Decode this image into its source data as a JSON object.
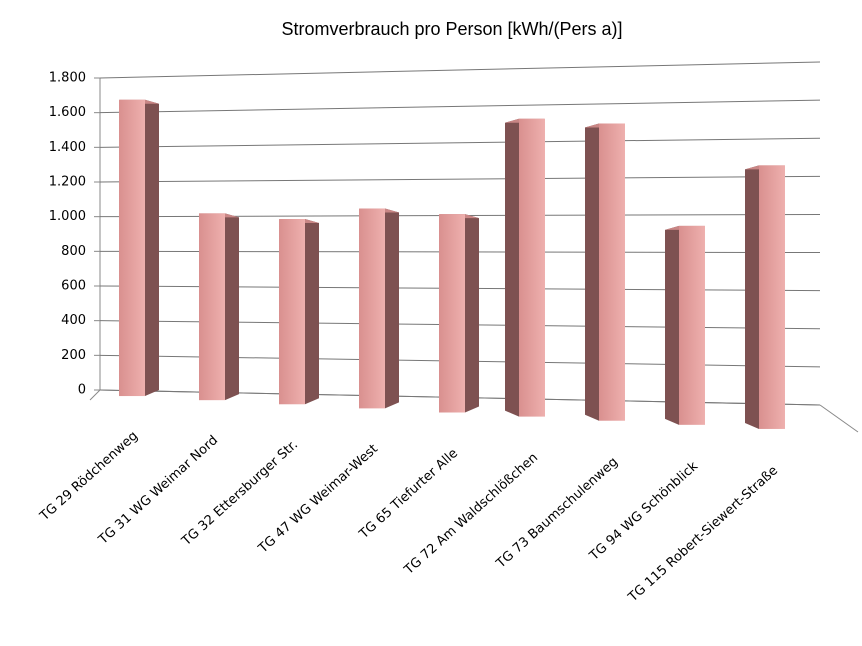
{
  "chart_data": {
    "type": "bar3d",
    "title": "Stromverbrauch pro Person [kWh/(Pers a)]",
    "categories": [
      "TG 29 Rödchenweg",
      "TG 31 WG Weimar Nord",
      "TG 32 Ettersburger Str.",
      "TG 47 WG Weimar-West",
      "TG 65 Tiefurter Alle",
      "TG 72 Am Waldschlößchen",
      "TG 73 Baumschulenweg",
      "TG 94 WG Schönblick",
      "TG 115 Robert-Siewert-Straße"
    ],
    "values": [
      1700,
      1060,
      1040,
      1110,
      1090,
      1620,
      1600,
      1060,
      1390
    ],
    "color": "#e0a09f",
    "ylim": [
      0,
      1800
    ],
    "yticks": [
      0,
      200,
      400,
      600,
      800,
      {
        "value": 1000,
        "label": "1.000"
      },
      {
        "value": 1200,
        "label": "1.200"
      },
      {
        "value": 1400,
        "label": "1.400"
      },
      {
        "value": 1600,
        "label": "1.600"
      },
      {
        "value": 1800,
        "label": "1.800"
      }
    ],
    "grid": true
  }
}
